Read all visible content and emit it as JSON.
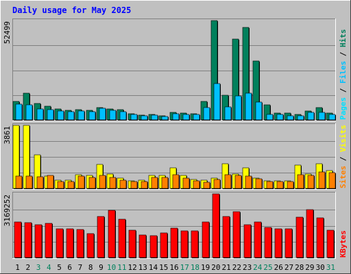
{
  "title": "Daily usage for May 2025",
  "colors": {
    "background": "#c0c0c0",
    "plot": "#c0c0c0",
    "title": "#0000ff",
    "hits": "#00805c",
    "files": "#00c0ff",
    "pages": "#00e0ff",
    "visits": "#ffff00",
    "sites": "#ff8000",
    "kbytes": "#ff0000",
    "weekend": "#00805c",
    "weekday": "#000000",
    "grid": "#808080"
  },
  "chart_data": [
    {
      "type": "bar",
      "panel": "hits-files-pages",
      "ymax_label": "52499",
      "ymax": 52499,
      "right_labels": [
        "Pages",
        "Files",
        "Hits"
      ],
      "right_label_sep": "/",
      "categories": [
        "1",
        "2",
        "3",
        "4",
        "5",
        "6",
        "7",
        "8",
        "9",
        "10",
        "11",
        "12",
        "13",
        "14",
        "15",
        "16",
        "17",
        "18",
        "19",
        "20",
        "21",
        "22",
        "23",
        "24",
        "25",
        "26",
        "27",
        "28",
        "29",
        "30",
        "31"
      ],
      "series": [
        {
          "name": "Hits",
          "key": "hits",
          "values": [
            9800,
            14300,
            8600,
            7400,
            5800,
            5000,
            5300,
            5000,
            6600,
            5700,
            5400,
            3400,
            2600,
            2800,
            2300,
            4000,
            3800,
            3300,
            9900,
            52499,
            12900,
            42800,
            49000,
            31000,
            7900,
            3800,
            3500,
            2900,
            4600,
            6500,
            3800
          ]
        },
        {
          "name": "Files",
          "key": "files",
          "values": [
            8300,
            7900,
            5700,
            5600,
            4600,
            4200,
            4600,
            4200,
            6000,
            5200,
            4300,
            2800,
            2300,
            2400,
            1900,
            3400,
            3000,
            2800,
            6400,
            19300,
            7000,
            12700,
            14200,
            9500,
            3000,
            3000,
            2300,
            2200,
            3900,
            4000,
            2800
          ]
        },
        {
          "name": "Pages",
          "key": "pages",
          "values": [
            0,
            0,
            0,
            0,
            0,
            0,
            0,
            0,
            0,
            0,
            0,
            0,
            0,
            0,
            0,
            0,
            0,
            0,
            0,
            0,
            0,
            0,
            0,
            0,
            0,
            0,
            0,
            0,
            0,
            0,
            0
          ]
        }
      ],
      "grid": true
    },
    {
      "type": "bar",
      "panel": "sites-visits",
      "ymax_label": "3861",
      "ymax": 3861,
      "right_labels": [
        "Sites",
        "Visits"
      ],
      "right_label_sep": "/",
      "series": [
        {
          "name": "Visits",
          "key": "visits",
          "values": [
            3861,
            3861,
            2070,
            760,
            500,
            520,
            860,
            780,
            1450,
            870,
            620,
            480,
            500,
            790,
            790,
            1280,
            800,
            530,
            520,
            620,
            1520,
            900,
            1250,
            650,
            460,
            480,
            460,
            1430,
            900,
            1530,
            1100
          ]
        },
        {
          "name": "Sites",
          "key": "sites",
          "values": [
            760,
            760,
            710,
            780,
            420,
            430,
            740,
            680,
            800,
            690,
            510,
            420,
            430,
            660,
            690,
            850,
            620,
            480,
            380,
            530,
            820,
            780,
            760,
            590,
            410,
            430,
            420,
            840,
            790,
            1000,
            960
          ]
        }
      ],
      "grid": true
    },
    {
      "type": "bar",
      "panel": "kbytes",
      "ymax_label": "3169252",
      "ymax": 3169252,
      "right_labels": [
        "KBytes"
      ],
      "series": [
        {
          "name": "KBytes",
          "key": "kbytes",
          "values": [
            1770000,
            1730000,
            1630000,
            1690000,
            1420000,
            1420000,
            1400000,
            1190000,
            2050000,
            2350000,
            1920000,
            1350000,
            1130000,
            1100000,
            1240000,
            1450000,
            1320000,
            1330000,
            1770000,
            3169252,
            2030000,
            2270000,
            1640000,
            1760000,
            1490000,
            1420000,
            1430000,
            2020000,
            2390000,
            1990000,
            1370000
          ]
        }
      ],
      "grid": true
    }
  ],
  "x_labels": [
    "1",
    "2",
    "3",
    "4",
    "5",
    "6",
    "7",
    "8",
    "9",
    "10",
    "11",
    "12",
    "13",
    "14",
    "15",
    "16",
    "17",
    "18",
    "19",
    "20",
    "21",
    "22",
    "23",
    "24",
    "25",
    "26",
    "27",
    "28",
    "29",
    "30",
    "31"
  ],
  "weekend_days": [
    "3",
    "4",
    "10",
    "11",
    "17",
    "18",
    "24",
    "25",
    "31"
  ]
}
